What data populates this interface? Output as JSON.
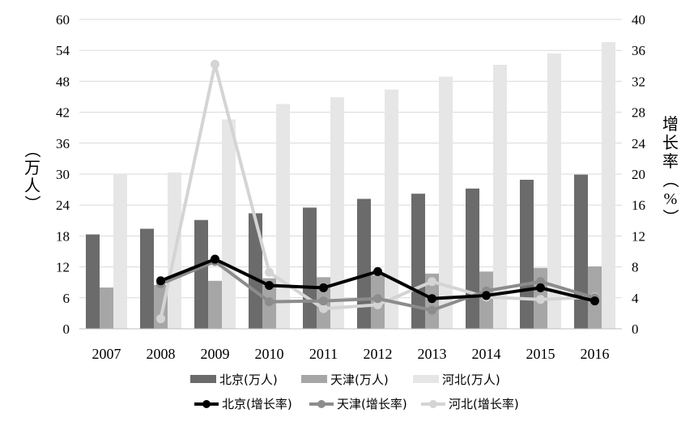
{
  "chart_data": {
    "type": "bar",
    "categories": [
      "2007",
      "2008",
      "2009",
      "2010",
      "2011",
      "2012",
      "2013",
      "2014",
      "2015",
      "2016"
    ],
    "y_left": {
      "label": "（万人）",
      "ylim": [
        0,
        60
      ],
      "ticks": [
        "0",
        "6",
        "12",
        "18",
        "24",
        "30",
        "36",
        "42",
        "48",
        "54",
        "60"
      ]
    },
    "y_right": {
      "label": "增长率（%）",
      "ylim": [
        0,
        40
      ],
      "ticks": [
        "0",
        "4",
        "8",
        "12",
        "16",
        "20",
        "24",
        "28",
        "32",
        "36",
        "40"
      ]
    },
    "grid": "horizontal",
    "legend_position": "bottom",
    "bar_series": [
      {
        "name": "北京(万人)",
        "color": "#6b6b6b",
        "values": [
          18.3,
          19.4,
          21.1,
          22.4,
          23.5,
          25.2,
          26.2,
          27.2,
          28.9,
          29.9
        ]
      },
      {
        "name": "天津(万人)",
        "color": "#a6a6a6",
        "values": [
          8.0,
          8.5,
          9.3,
          9.8,
          10.0,
          10.4,
          10.7,
          11.1,
          11.8,
          12.1
        ]
      },
      {
        "name": "河北(万人)",
        "color": "#e6e6e6",
        "values": [
          30.0,
          30.3,
          40.6,
          43.6,
          44.9,
          46.4,
          48.9,
          51.2,
          53.4,
          55.6
        ]
      }
    ],
    "line_series": [
      {
        "name": "北京(增长率)",
        "color": "#000000",
        "values": [
          null,
          6.2,
          9.0,
          5.6,
          5.3,
          7.4,
          3.9,
          4.3,
          5.3,
          3.6
        ]
      },
      {
        "name": "天津(增长率)",
        "color": "#8c8c8c",
        "values": [
          null,
          5.8,
          8.7,
          3.5,
          3.6,
          3.9,
          2.4,
          4.9,
          6.1,
          4.0
        ]
      },
      {
        "name": "河北(增长率)",
        "color": "#d4d4d4",
        "values": [
          null,
          1.3,
          34.2,
          7.3,
          2.6,
          3.1,
          6.1,
          4.1,
          3.8,
          4.1
        ]
      }
    ]
  }
}
